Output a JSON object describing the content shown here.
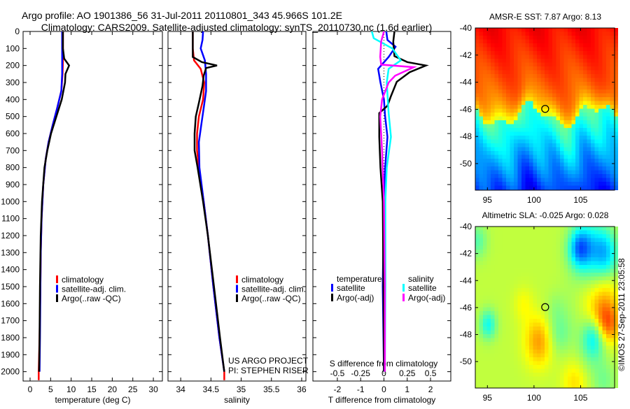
{
  "title_line1": "Argo profile: AO 1901386_56 31-Jul-2011 20110801_343 45.966S 101.2E",
  "title_line2": "Climatology: CARS2009. Satellite-adjusted climatology: synTS_20110730.nc (1.6d earlier)",
  "credit": "©IMOS 27-Sep-2011 23:05:58",
  "project_line1": "US ARGO PROJECT",
  "project_line2": "PI: STEPHEN RISER",
  "colors": {
    "climatology": "#ff0000",
    "satellite": "#0000ff",
    "argo": "#000000",
    "sal_satellite": "#00ffff",
    "sal_argo": "#ff00ff"
  },
  "chart_data": [
    {
      "type": "line",
      "xlabel": "temperature (deg C)",
      "ylabel": "",
      "xlim": [
        -1.7,
        32.2
      ],
      "ylim": [
        2055,
        0
      ],
      "xticks": [
        0,
        5,
        10,
        15,
        20,
        25,
        30
      ],
      "yticks": [
        0,
        100,
        200,
        300,
        400,
        500,
        600,
        700,
        800,
        900,
        1000,
        1100,
        1200,
        1300,
        1400,
        1500,
        1600,
        1700,
        1800,
        1900,
        2000
      ],
      "legend": [
        "climatology",
        "satellite-adj. clim.",
        "Argo(..raw -QC)"
      ],
      "series": [
        {
          "name": "climatology",
          "color": "#ff0000",
          "depth": [
            0,
            100,
            180,
            250,
            350,
            450,
            550,
            650,
            750,
            900,
            1100,
            1300,
            1500,
            1800,
            2000,
            2050
          ],
          "values": [
            8.0,
            8.0,
            8.0,
            7.9,
            7.6,
            6.6,
            5.5,
            4.5,
            3.8,
            3.2,
            2.8,
            2.6,
            2.5,
            2.3,
            2.1,
            2.1
          ]
        },
        {
          "name": "satellite-adj. clim.",
          "color": "#0000ff",
          "depth": [
            0,
            100,
            180,
            250,
            350,
            450,
            550,
            650,
            750,
            900,
            1100,
            1300,
            1500,
            1800,
            2000
          ],
          "values": [
            7.8,
            7.8,
            7.8,
            7.8,
            7.6,
            6.6,
            5.5,
            4.5,
            3.8,
            3.2,
            2.8,
            2.6,
            2.5,
            2.4,
            2.3
          ]
        },
        {
          "name": "Argo(..raw -QC)",
          "color": "#000000",
          "depth": [
            0,
            100,
            160,
            200,
            250,
            300,
            400,
            500,
            600,
            700,
            800,
            1000,
            1200,
            1500,
            1800,
            2000
          ],
          "values": [
            8.0,
            8.0,
            8.3,
            9.5,
            8.6,
            8.5,
            7.7,
            6.4,
            5.1,
            4.2,
            3.5,
            2.9,
            2.6,
            2.4,
            2.3,
            2.2
          ]
        }
      ]
    },
    {
      "type": "line",
      "xlabel": "salinity",
      "xlim": [
        33.79,
        36.07
      ],
      "ylim": [
        2055,
        0
      ],
      "xticks": [
        34,
        34.5,
        35,
        35.5,
        36
      ],
      "legend": [
        "climatology",
        "satellite-adj. clim.",
        "Argo(..raw -QC)"
      ],
      "series": [
        {
          "name": "climatology",
          "color": "#ff0000",
          "depth": [
            0,
            100,
            170,
            220,
            300,
            400,
            500,
            600,
            700,
            800,
            1000,
            1200,
            1500,
            1800,
            2000,
            2050
          ],
          "values": [
            34.2,
            34.2,
            34.22,
            34.33,
            34.39,
            34.37,
            34.3,
            34.27,
            34.27,
            34.3,
            34.38,
            34.45,
            34.54,
            34.64,
            34.72,
            34.72
          ]
        },
        {
          "name": "satellite-adj. clim.",
          "color": "#0000ff",
          "depth": [
            0,
            50,
            100,
            170,
            250,
            350,
            450,
            550,
            650,
            800,
            1000,
            1200,
            1500,
            1800,
            2000
          ],
          "values": [
            34.37,
            34.36,
            34.33,
            34.4,
            34.42,
            34.42,
            34.38,
            34.34,
            34.3,
            34.31,
            34.38,
            34.45,
            34.54,
            34.64,
            34.72
          ]
        },
        {
          "name": "Argo(..raw -QC)",
          "color": "#000000",
          "depth": [
            0,
            150,
            180,
            200,
            215,
            260,
            320,
            420,
            500,
            600,
            700,
            800,
            1000,
            1200,
            1500,
            1800,
            2000
          ],
          "values": [
            34.2,
            34.2,
            34.35,
            34.6,
            34.42,
            34.38,
            34.36,
            34.3,
            34.25,
            34.23,
            34.23,
            34.28,
            34.37,
            34.45,
            34.55,
            34.65,
            34.72
          ]
        }
      ]
    },
    {
      "type": "line",
      "xlabel": "T difference from climatology",
      "xlabel_top": "S difference from climatology",
      "xlim": [
        -3.05,
        2.87
      ],
      "xlim_top": [
        -0.76,
        0.72
      ],
      "ylim": [
        2055,
        0
      ],
      "xticks": [
        -2,
        -1,
        0,
        1,
        2
      ],
      "xticks_top": [
        -0.5,
        -0.25,
        0,
        0.25,
        0.5
      ],
      "xtick_labels_top": [
        "-0.5",
        "-0.25",
        "0",
        "0.25",
        "0.5"
      ],
      "legend_headers": [
        "temperature",
        "salinity"
      ],
      "legend": [
        "satellite",
        "Argo(-adj)",
        "satellite",
        "Argo(-adj)"
      ],
      "series": [
        {
          "name": "temperature satellite",
          "axis": "T",
          "color": "#0000ff",
          "depth": [
            0,
            50,
            90,
            150,
            220,
            300,
            400,
            500,
            620,
            800,
            1000,
            1500,
            2000
          ],
          "values": [
            0.1,
            0.15,
            0.5,
            0.2,
            -0.25,
            -0.15,
            0,
            0.05,
            0.15,
            0.05,
            0,
            -0.05,
            0
          ]
        },
        {
          "name": "temperature Argo(-adj)",
          "axis": "T",
          "color": "#000000",
          "depth": [
            0,
            60,
            145,
            180,
            200,
            240,
            296,
            380,
            437,
            480,
            620,
            800,
            1000,
            1500,
            2000
          ],
          "values": [
            0.45,
            0.4,
            0.45,
            1.0,
            1.8,
            1.1,
            0.55,
            0.3,
            0.15,
            -0.2,
            -0.2,
            -0.15,
            -0.05,
            -0.02,
            0
          ]
        },
        {
          "name": "salinity satellite",
          "axis": "S",
          "color": "#00ffff",
          "depth": [
            0,
            40,
            100,
            170,
            220,
            300,
            480,
            620,
            800,
            1000,
            1500,
            2000
          ],
          "values": [
            -0.13,
            -0.11,
            0.09,
            0.18,
            0.05,
            0.03,
            0.05,
            0.075,
            0.03,
            0.015,
            0.015,
            0.01
          ]
        },
        {
          "name": "salinity Argo(-adj)",
          "axis": "S",
          "color": "#ff00ff",
          "depth": [
            0,
            60,
            150,
            195,
            210,
            260,
            300,
            400,
            500,
            700,
            1000,
            1500,
            2000
          ],
          "values": [
            0,
            -0.03,
            -0.04,
            -0.03,
            0.32,
            0.12,
            0.05,
            -0.02,
            -0.04,
            -0.02,
            0,
            0.01,
            0.01
          ]
        }
      ]
    },
    {
      "type": "heatmap",
      "title": "AMSR-E SST: 7.87 Argo: 8.13",
      "xlim": [
        93.7,
        108.65
      ],
      "ylim": [
        -51.96,
        -40
      ],
      "xticks": [
        95,
        100,
        105
      ],
      "yticks": [
        -40,
        -42,
        -44,
        -46,
        -48,
        -50
      ],
      "marker": {
        "lon": 101.2,
        "lat": -45.966
      }
    },
    {
      "type": "heatmap",
      "title": "Altimetric SLA: -0.025 Argo: 0.028",
      "xlim": [
        93.7,
        108.65
      ],
      "ylim": [
        -51.96,
        -40
      ],
      "xticks": [
        95,
        100,
        105
      ],
      "yticks": [
        -40,
        -42,
        -44,
        -46,
        -48,
        -50
      ],
      "marker": {
        "lon": 101.2,
        "lat": -45.966
      }
    }
  ]
}
